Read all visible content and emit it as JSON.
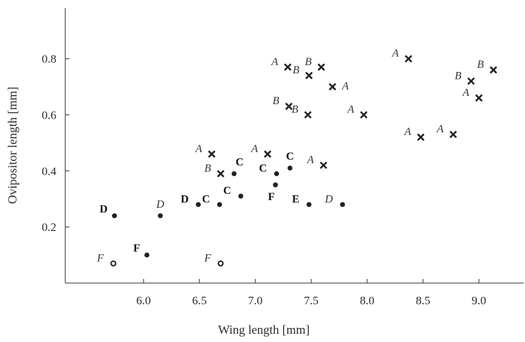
{
  "chart_data": {
    "type": "scatter",
    "title": "",
    "xlabel": "Wing length [mm]",
    "ylabel": "Ovipositor length [mm]",
    "xlim": [
      5.3,
      9.4
    ],
    "ylim": [
      0.0,
      0.98
    ],
    "xticks": [
      6.0,
      6.5,
      7.0,
      7.5,
      8.0,
      8.5,
      9.0
    ],
    "xtick_labels": [
      "6.0",
      "6.5",
      "7.0",
      "7.5",
      "8.0",
      "8.5",
      "9.0"
    ],
    "yticks": [
      0.2,
      0.4,
      0.6,
      0.8
    ],
    "ytick_labels": [
      "0.2",
      "0.4",
      "0.6",
      "0.8"
    ],
    "grid": false,
    "marker_legend": {
      "x": "cross",
      "filled": "dot",
      "open": "ring"
    },
    "points": [
      {
        "x": 7.29,
        "y": 0.77,
        "marker": "x",
        "label": "A",
        "style": "italic",
        "side": "left"
      },
      {
        "x": 7.48,
        "y": 0.74,
        "marker": "x",
        "label": "B",
        "style": "italic",
        "side": "left"
      },
      {
        "x": 7.59,
        "y": 0.77,
        "marker": "x",
        "label": "B",
        "style": "italic",
        "side": "left"
      },
      {
        "x": 7.69,
        "y": 0.7,
        "marker": "x",
        "label": "A",
        "style": "italic",
        "side": "right"
      },
      {
        "x": 7.3,
        "y": 0.63,
        "marker": "x",
        "label": "B",
        "style": "italic",
        "side": "left"
      },
      {
        "x": 7.47,
        "y": 0.6,
        "marker": "x",
        "label": "B",
        "style": "italic",
        "side": "left"
      },
      {
        "x": 7.97,
        "y": 0.6,
        "marker": "x",
        "label": "A",
        "style": "italic",
        "side": "left"
      },
      {
        "x": 8.37,
        "y": 0.8,
        "marker": "x",
        "label": "A",
        "style": "italic",
        "side": "left"
      },
      {
        "x": 8.48,
        "y": 0.52,
        "marker": "x",
        "label": "A",
        "style": "italic",
        "side": "left"
      },
      {
        "x": 8.77,
        "y": 0.53,
        "marker": "x",
        "label": "A",
        "style": "italic",
        "side": "left"
      },
      {
        "x": 8.93,
        "y": 0.72,
        "marker": "x",
        "label": "B",
        "style": "italic",
        "side": "left"
      },
      {
        "x": 9.0,
        "y": 0.66,
        "marker": "x",
        "label": "A",
        "style": "italic",
        "side": "left"
      },
      {
        "x": 9.13,
        "y": 0.76,
        "marker": "x",
        "label": "B",
        "style": "italic",
        "side": "left"
      },
      {
        "x": 6.61,
        "y": 0.46,
        "marker": "x",
        "label": "A",
        "style": "italic",
        "side": "left"
      },
      {
        "x": 6.69,
        "y": 0.39,
        "marker": "x",
        "label": "B",
        "style": "italic",
        "side": "left"
      },
      {
        "x": 7.11,
        "y": 0.46,
        "marker": "x",
        "label": "A",
        "style": "italic",
        "side": "left"
      },
      {
        "x": 7.61,
        "y": 0.42,
        "marker": "x",
        "label": "A",
        "style": "italic",
        "side": "left"
      },
      {
        "x": 6.81,
        "y": 0.39,
        "marker": "dot",
        "label": "C",
        "style": "bold",
        "side": "right-up"
      },
      {
        "x": 7.19,
        "y": 0.39,
        "marker": "dot",
        "label": "C",
        "style": "bold",
        "side": "left"
      },
      {
        "x": 7.31,
        "y": 0.41,
        "marker": "dot",
        "label": "C",
        "style": "bold",
        "side": "up"
      },
      {
        "x": 7.18,
        "y": 0.35,
        "marker": "dot",
        "label": "F",
        "style": "bold",
        "side": "down-left"
      },
      {
        "x": 6.68,
        "y": 0.28,
        "marker": "dot",
        "label": "C",
        "style": "bold",
        "side": "left"
      },
      {
        "x": 6.87,
        "y": 0.31,
        "marker": "dot",
        "label": "C",
        "style": "bold",
        "side": "left"
      },
      {
        "x": 6.49,
        "y": 0.28,
        "marker": "dot",
        "label": "D",
        "style": "bold",
        "side": "left"
      },
      {
        "x": 7.48,
        "y": 0.28,
        "marker": "dot",
        "label": "E",
        "style": "bold",
        "side": "left"
      },
      {
        "x": 7.78,
        "y": 0.28,
        "marker": "dot",
        "label": "D",
        "style": "italic",
        "side": "left"
      },
      {
        "x": 5.74,
        "y": 0.24,
        "marker": "dot",
        "label": "D",
        "style": "bold",
        "side": "left-up"
      },
      {
        "x": 6.15,
        "y": 0.24,
        "marker": "dot",
        "label": "D",
        "style": "italic",
        "side": "up"
      },
      {
        "x": 6.03,
        "y": 0.1,
        "marker": "dot",
        "label": "F",
        "style": "bold",
        "side": "left-up"
      },
      {
        "x": 5.73,
        "y": 0.07,
        "marker": "ring",
        "label": "F",
        "style": "italic",
        "side": "left"
      },
      {
        "x": 6.69,
        "y": 0.07,
        "marker": "ring",
        "label": "F",
        "style": "italic",
        "side": "left"
      }
    ]
  }
}
